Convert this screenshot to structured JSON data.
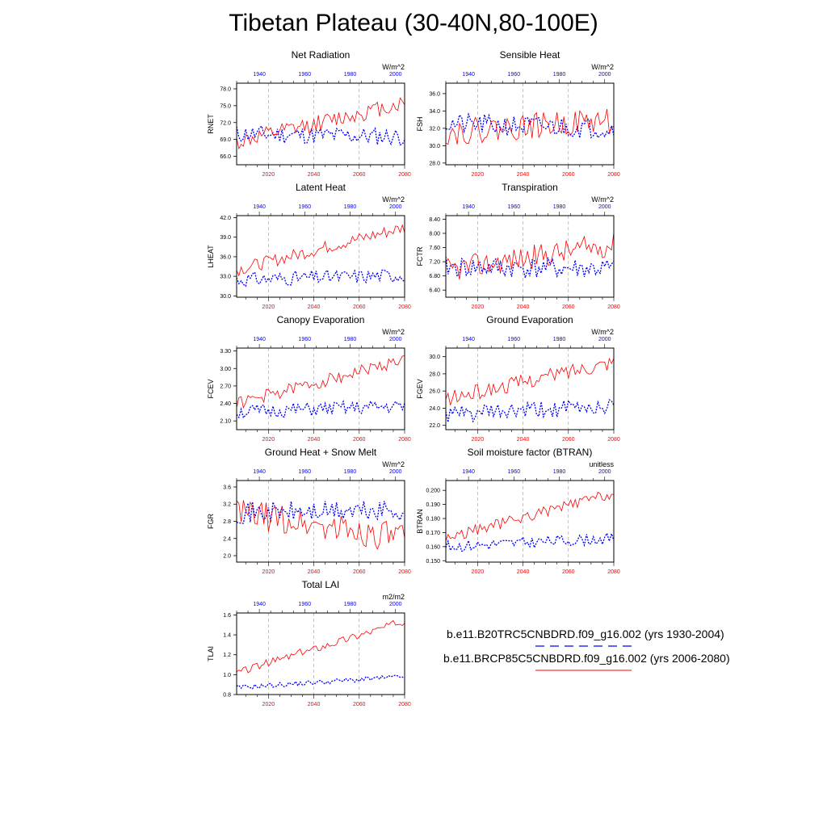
{
  "title": "Tibetan Plateau (30-40N,80-100E)",
  "legend": [
    {
      "label": "b.e11.B20TRC5CNBDRD.f09_g16.002 (yrs 1930-2004)",
      "color": "#0000ff",
      "style": "dashed"
    },
    {
      "label": "b.e11.BRCP85C5CNBDRD.f09_g16.002 (yrs 2006-2080)",
      "color": "#ff0000",
      "style": "solid"
    }
  ],
  "colors": {
    "historical": "#0000ff",
    "future": "#ff0000",
    "grid": "#999999",
    "axis": "#000000"
  },
  "chart_data": [
    {
      "type": "line",
      "title": "Net Radiation",
      "units": "W/m^2",
      "ylabel": "RNET",
      "ylim": [
        64.5,
        79
      ],
      "yticks": [
        66.0,
        69.0,
        72.0,
        75.0,
        78.0
      ],
      "ydec": 1,
      "x_top": {
        "label_years": [
          1940,
          1960,
          1980,
          2000
        ],
        "range": [
          1930,
          2004
        ]
      },
      "x_bottom": {
        "label_years": [
          2020,
          2040,
          2060,
          2080
        ],
        "range": [
          2006,
          2080
        ]
      },
      "series": [
        {
          "name": "historical",
          "start": 70.0,
          "end": 69.5,
          "amp": 1.6,
          "min": 65.5,
          "max": 72.6,
          "seed": 11
        },
        {
          "name": "future",
          "start": 68.5,
          "end": 75.5,
          "amp": 1.5,
          "min": 67.0,
          "max": 77.5,
          "seed": 12
        }
      ]
    },
    {
      "type": "line",
      "title": "Sensible Heat",
      "units": "W/m^2",
      "ylabel": "FSH",
      "ylim": [
        27.8,
        37.2
      ],
      "yticks": [
        28.0,
        30.0,
        32.0,
        34.0,
        36.0
      ],
      "ydec": 1,
      "x_top": {
        "label_years": [
          1940,
          1960,
          1980,
          2000
        ],
        "range": [
          1930,
          2004
        ]
      },
      "x_bottom": {
        "label_years": [
          2020,
          2040,
          2060,
          2080
        ],
        "range": [
          2006,
          2080
        ]
      },
      "series": [
        {
          "name": "historical",
          "start": 32.5,
          "end": 32.0,
          "amp": 1.2,
          "min": 28.5,
          "max": 37.0,
          "seed": 21
        },
        {
          "name": "future",
          "start": 31.5,
          "end": 33.0,
          "amp": 1.5,
          "min": 28.0,
          "max": 35.8,
          "seed": 22
        }
      ]
    },
    {
      "type": "line",
      "title": "Latent Heat",
      "units": "W/m^2",
      "ylabel": "LHEAT",
      "ylim": [
        29.8,
        42.3
      ],
      "yticks": [
        30.0,
        33.0,
        36.0,
        39.0,
        42.0
      ],
      "ydec": 1,
      "x_top": {
        "label_years": [
          1940,
          1960,
          1980,
          2000
        ],
        "range": [
          1930,
          2004
        ]
      },
      "x_bottom": {
        "label_years": [
          2020,
          2040,
          2060,
          2080
        ],
        "range": [
          2006,
          2080
        ]
      },
      "series": [
        {
          "name": "historical",
          "start": 32.5,
          "end": 33.2,
          "amp": 1.1,
          "min": 30.6,
          "max": 35.2,
          "seed": 31
        },
        {
          "name": "future",
          "start": 34.0,
          "end": 40.5,
          "amp": 1.0,
          "min": 33.0,
          "max": 42.0,
          "seed": 32
        }
      ]
    },
    {
      "type": "line",
      "title": "Transpiration",
      "units": "W/m^2",
      "ylabel": "FCTR",
      "ylim": [
        6.2,
        8.5
      ],
      "yticks": [
        6.4,
        6.8,
        7.2,
        7.6,
        8.0,
        8.4
      ],
      "ydec": 2,
      "x_top": {
        "label_years": [
          1940,
          1960,
          1980,
          2000
        ],
        "range": [
          1930,
          2004
        ]
      },
      "x_bottom": {
        "label_years": [
          2020,
          2040,
          2060,
          2080
        ],
        "range": [
          2006,
          2080
        ]
      },
      "series": [
        {
          "name": "historical",
          "start": 7.05,
          "end": 7.0,
          "amp": 0.3,
          "min": 6.3,
          "max": 7.8,
          "seed": 41
        },
        {
          "name": "future",
          "start": 6.95,
          "end": 7.7,
          "amp": 0.35,
          "min": 6.3,
          "max": 8.45,
          "seed": 42
        }
      ]
    },
    {
      "type": "line",
      "title": "Canopy Evaporation",
      "units": "W/m^2",
      "ylabel": "FCEV",
      "ylim": [
        1.95,
        3.35
      ],
      "yticks": [
        2.1,
        2.4,
        2.7,
        3.0,
        3.3
      ],
      "ydec": 2,
      "x_top": {
        "label_years": [
          1940,
          1960,
          1980,
          2000
        ],
        "range": [
          1930,
          2004
        ]
      },
      "x_bottom": {
        "label_years": [
          2020,
          2040,
          2060,
          2080
        ],
        "range": [
          2006,
          2080
        ]
      },
      "series": [
        {
          "name": "historical",
          "start": 2.25,
          "end": 2.35,
          "amp": 0.12,
          "min": 1.98,
          "max": 2.48,
          "seed": 51
        },
        {
          "name": "future",
          "start": 2.4,
          "end": 3.15,
          "amp": 0.11,
          "min": 2.25,
          "max": 3.3,
          "seed": 52
        }
      ]
    },
    {
      "type": "line",
      "title": "Ground Evaporation",
      "units": "W/m^2",
      "ylabel": "FGEV",
      "ylim": [
        21.5,
        31.0
      ],
      "yticks": [
        22.0,
        24.0,
        26.0,
        28.0,
        30.0
      ],
      "ydec": 1,
      "x_top": {
        "label_years": [
          1940,
          1960,
          1980,
          2000
        ],
        "range": [
          1930,
          2004
        ]
      },
      "x_bottom": {
        "label_years": [
          2020,
          2040,
          2060,
          2080
        ],
        "range": [
          2006,
          2080
        ]
      },
      "series": [
        {
          "name": "historical",
          "start": 23.2,
          "end": 24.2,
          "amp": 1.0,
          "min": 21.7,
          "max": 26.5,
          "seed": 61
        },
        {
          "name": "future",
          "start": 25.0,
          "end": 29.5,
          "amp": 0.9,
          "min": 24.3,
          "max": 31.0,
          "seed": 62
        }
      ]
    },
    {
      "type": "line",
      "title": "Ground Heat + Snow Melt",
      "units": "W/m^2",
      "ylabel": "FGR",
      "ylim": [
        1.85,
        3.75
      ],
      "yticks": [
        2.0,
        2.4,
        2.8,
        3.2,
        3.6
      ],
      "ydec": 1,
      "x_top": {
        "label_years": [
          1940,
          1960,
          1980,
          2000
        ],
        "range": [
          1930,
          2004
        ]
      },
      "x_bottom": {
        "label_years": [
          2020,
          2040,
          2060,
          2080
        ],
        "range": [
          2006,
          2080
        ]
      },
      "series": [
        {
          "name": "historical",
          "start": 3.0,
          "end": 3.05,
          "amp": 0.25,
          "min": 2.3,
          "max": 3.5,
          "seed": 71
        },
        {
          "name": "future",
          "start": 3.0,
          "end": 2.4,
          "amp": 0.35,
          "min": 1.9,
          "max": 3.7,
          "seed": 72
        }
      ]
    },
    {
      "type": "line",
      "title": "Soil moisture factor (BTRAN)",
      "units": "unitless",
      "ylabel": "BTRAN",
      "ylim": [
        0.149,
        0.207
      ],
      "yticks": [
        0.15,
        0.16,
        0.17,
        0.18,
        0.19,
        0.2
      ],
      "ydec": 3,
      "x_top": {
        "label_years": [
          1940,
          1960,
          1980,
          2000
        ],
        "range": [
          1930,
          2004
        ]
      },
      "x_bottom": {
        "label_years": [
          2020,
          2040,
          2060,
          2080
        ],
        "range": [
          2006,
          2080
        ]
      },
      "series": [
        {
          "name": "historical",
          "start": 0.16,
          "end": 0.166,
          "amp": 0.004,
          "min": 0.152,
          "max": 0.172,
          "seed": 81
        },
        {
          "name": "future",
          "start": 0.166,
          "end": 0.198,
          "amp": 0.004,
          "min": 0.16,
          "max": 0.205,
          "seed": 82
        }
      ]
    },
    {
      "type": "line",
      "title": "Total LAI",
      "units": "m2/m2",
      "ylabel": "TLAI",
      "ylim": [
        0.8,
        1.62
      ],
      "yticks": [
        0.8,
        1.0,
        1.2,
        1.4,
        1.6
      ],
      "ydec": 1,
      "x_top": {
        "label_years": [
          1940,
          1960,
          1980,
          2000
        ],
        "range": [
          1930,
          2004
        ]
      },
      "x_bottom": {
        "label_years": [
          2020,
          2040,
          2060,
          2080
        ],
        "range": [
          2006,
          2080
        ]
      },
      "series": [
        {
          "name": "historical",
          "start": 0.87,
          "end": 0.98,
          "amp": 0.025,
          "min": 0.84,
          "max": 1.06,
          "seed": 91
        },
        {
          "name": "future",
          "start": 1.02,
          "end": 1.54,
          "amp": 0.04,
          "min": 0.98,
          "max": 1.58,
          "seed": 92
        }
      ]
    }
  ]
}
